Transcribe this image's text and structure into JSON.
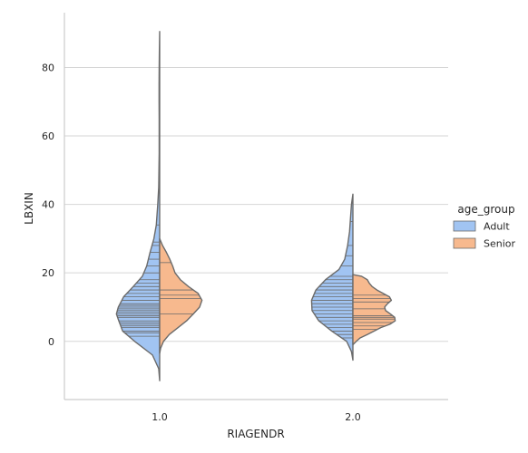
{
  "chart_data": {
    "type": "violin",
    "split": true,
    "inner": "stick",
    "xlabel": "RIAGENDR",
    "ylabel": "LBXIN",
    "categories": [
      "1.0",
      "2.0"
    ],
    "ylim": [
      -17,
      96
    ],
    "yticks": [
      0,
      20,
      40,
      60,
      80
    ],
    "grid": "horizontal",
    "legend": {
      "title": "age_group",
      "position": "right",
      "entries": [
        {
          "label": "Adult",
          "color": "#a1c4f2"
        },
        {
          "label": "Senior",
          "color": "#f7b98e"
        }
      ]
    },
    "series": [
      {
        "name": "Adult",
        "color": "#a1c4f2",
        "side": "left",
        "violins": [
          {
            "category": "1.0",
            "range": [
              -11.5,
              90.5
            ],
            "profile": [
              [
                -11.5,
                0
              ],
              [
                -8,
                0.02
              ],
              [
                -4,
                0.15
              ],
              [
                0,
                0.52
              ],
              [
                3,
                0.77
              ],
              [
                6,
                0.85
              ],
              [
                8,
                0.9
              ],
              [
                10,
                0.86
              ],
              [
                13,
                0.75
              ],
              [
                16,
                0.55
              ],
              [
                19,
                0.36
              ],
              [
                22,
                0.27
              ],
              [
                26,
                0.2
              ],
              [
                30,
                0.12
              ],
              [
                34,
                0.07
              ],
              [
                40,
                0.04
              ],
              [
                45,
                0.02
              ],
              [
                50,
                0.015
              ],
              [
                55,
                0.01
              ],
              [
                60,
                0.01
              ],
              [
                65,
                0.01
              ],
              [
                70,
                0.012
              ],
              [
                75,
                0.012
              ],
              [
                80,
                0.01
              ],
              [
                85,
                0.006
              ],
              [
                90.5,
                0
              ]
            ],
            "sticks": [
              1.5,
              2.5,
              3,
              4,
              4.5,
              5,
              5.5,
              6,
              7,
              7.5,
              8,
              8.5,
              9,
              9.5,
              10,
              10.5,
              11,
              12,
              13,
              14,
              15,
              16,
              17,
              18,
              20,
              22,
              24,
              26,
              28,
              29,
              34
            ]
          },
          {
            "category": "2.0",
            "range": [
              -5.5,
              43
            ],
            "profile": [
              [
                -5.5,
                0
              ],
              [
                -3,
                0.03
              ],
              [
                0,
                0.13
              ],
              [
                3,
                0.44
              ],
              [
                6,
                0.71
              ],
              [
                9,
                0.85
              ],
              [
                12,
                0.86
              ],
              [
                15,
                0.77
              ],
              [
                18,
                0.57
              ],
              [
                21,
                0.29
              ],
              [
                24,
                0.17
              ],
              [
                28,
                0.11
              ],
              [
                32,
                0.07
              ],
              [
                36,
                0.05
              ],
              [
                40,
                0.03
              ],
              [
                43,
                0
              ]
            ],
            "sticks": [
              1,
              2,
              3,
              4,
              5,
              6,
              7,
              8,
              9,
              10,
              11,
              12,
              13,
              14,
              15,
              16,
              17,
              18,
              19,
              22,
              25,
              28,
              35
            ]
          }
        ]
      },
      {
        "name": "Senior",
        "color": "#f7b98e",
        "side": "right",
        "violins": [
          {
            "category": "1.0",
            "range": [
              -3.5,
              30
            ],
            "profile": [
              [
                -3.5,
                0
              ],
              [
                -2,
                0.02
              ],
              [
                0,
                0.08
              ],
              [
                2,
                0.2
              ],
              [
                4,
                0.38
              ],
              [
                6,
                0.56
              ],
              [
                8,
                0.7
              ],
              [
                10,
                0.83
              ],
              [
                12,
                0.88
              ],
              [
                14,
                0.8
              ],
              [
                16,
                0.6
              ],
              [
                18,
                0.43
              ],
              [
                20,
                0.32
              ],
              [
                22,
                0.27
              ],
              [
                24,
                0.21
              ],
              [
                26,
                0.14
              ],
              [
                28,
                0.06
              ],
              [
                30,
                0
              ]
            ],
            "sticks": [
              8,
              12.5,
              13.5,
              15,
              23
            ]
          },
          {
            "category": "2.0",
            "range": [
              -1,
              19.5
            ],
            "profile": [
              [
                -1,
                0
              ],
              [
                0,
                0.07
              ],
              [
                1,
                0.15
              ],
              [
                2,
                0.3
              ],
              [
                4,
                0.58
              ],
              [
                5,
                0.77
              ],
              [
                6,
                0.88
              ],
              [
                7,
                0.87
              ],
              [
                8,
                0.78
              ],
              [
                9,
                0.68
              ],
              [
                10,
                0.66
              ],
              [
                11,
                0.72
              ],
              [
                12,
                0.8
              ],
              [
                13,
                0.76
              ],
              [
                14,
                0.63
              ],
              [
                15,
                0.5
              ],
              [
                16,
                0.4
              ],
              [
                17,
                0.34
              ],
              [
                18,
                0.3
              ],
              [
                19,
                0.18
              ],
              [
                19.5,
                0
              ]
            ],
            "sticks": [
              3.5,
              4.5,
              5.5,
              6.5,
              7,
              7.5,
              9.5,
              11.5,
              12.5,
              13.5
            ]
          }
        ]
      }
    ]
  }
}
